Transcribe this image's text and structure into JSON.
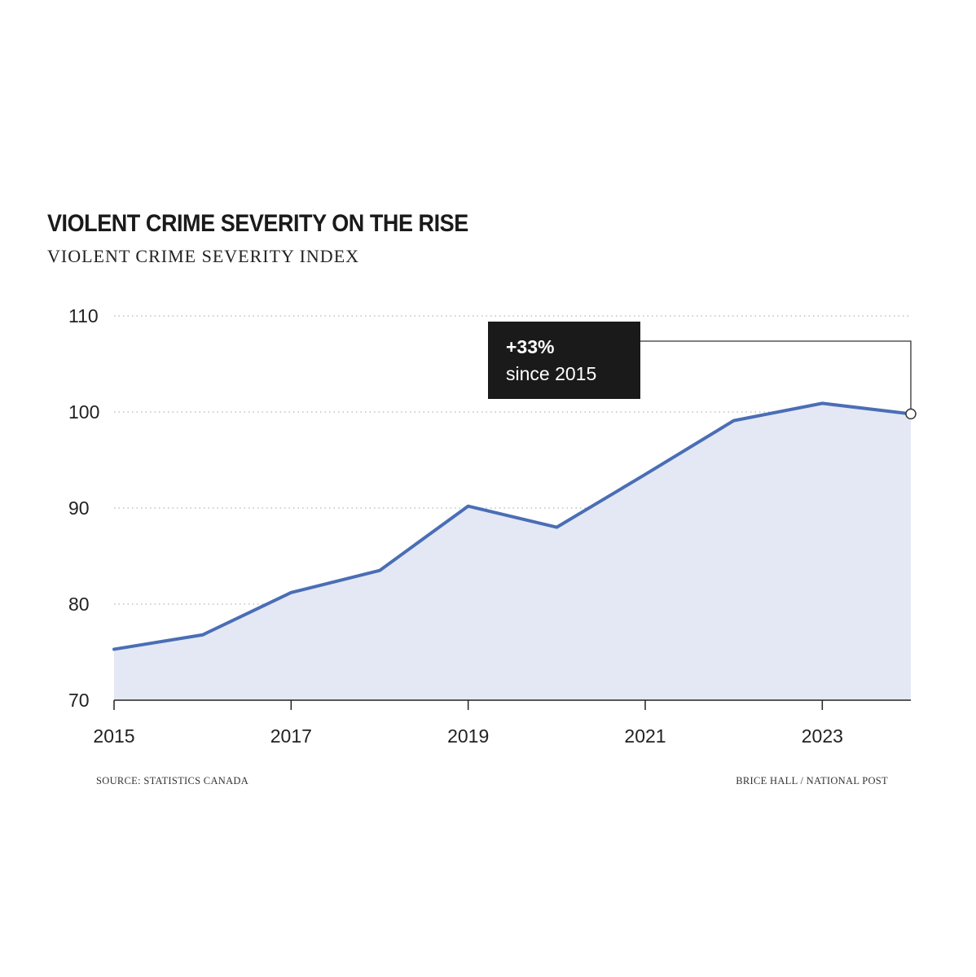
{
  "chart_data": {
    "type": "area",
    "title": "VIOLENT CRIME SEVERITY ON THE RISE",
    "subtitle": "VIOLENT CRIME SEVERITY INDEX",
    "xlabel": "",
    "ylabel": "",
    "x": [
      2015,
      2016,
      2017,
      2018,
      2019,
      2020,
      2021,
      2022,
      2023,
      2024
    ],
    "series": [
      {
        "values": [
          75.3,
          76.8,
          81.2,
          83.5,
          90.2,
          88.0,
          93.5,
          99.1,
          100.9,
          99.8
        ]
      }
    ],
    "xticks": [
      "2015",
      "2017",
      "2019",
      "2021",
      "2023"
    ],
    "yticks": [
      "70",
      "80",
      "90",
      "100",
      "110"
    ],
    "xlim": [
      2015,
      2024
    ],
    "ylim": [
      70,
      110
    ],
    "grid": "horizontal-dotted",
    "colors": {
      "line": "#4a6eb5",
      "fill": "#e4e8f4",
      "callout_bg": "#1a1a1a"
    },
    "annotation": {
      "line1": "+33%",
      "line2": "since 2015",
      "x": 2024,
      "y": 99.8
    }
  },
  "footer": {
    "source": "SOURCE: STATISTICS CANADA",
    "credit": "BRICE HALL / NATIONAL POST"
  }
}
